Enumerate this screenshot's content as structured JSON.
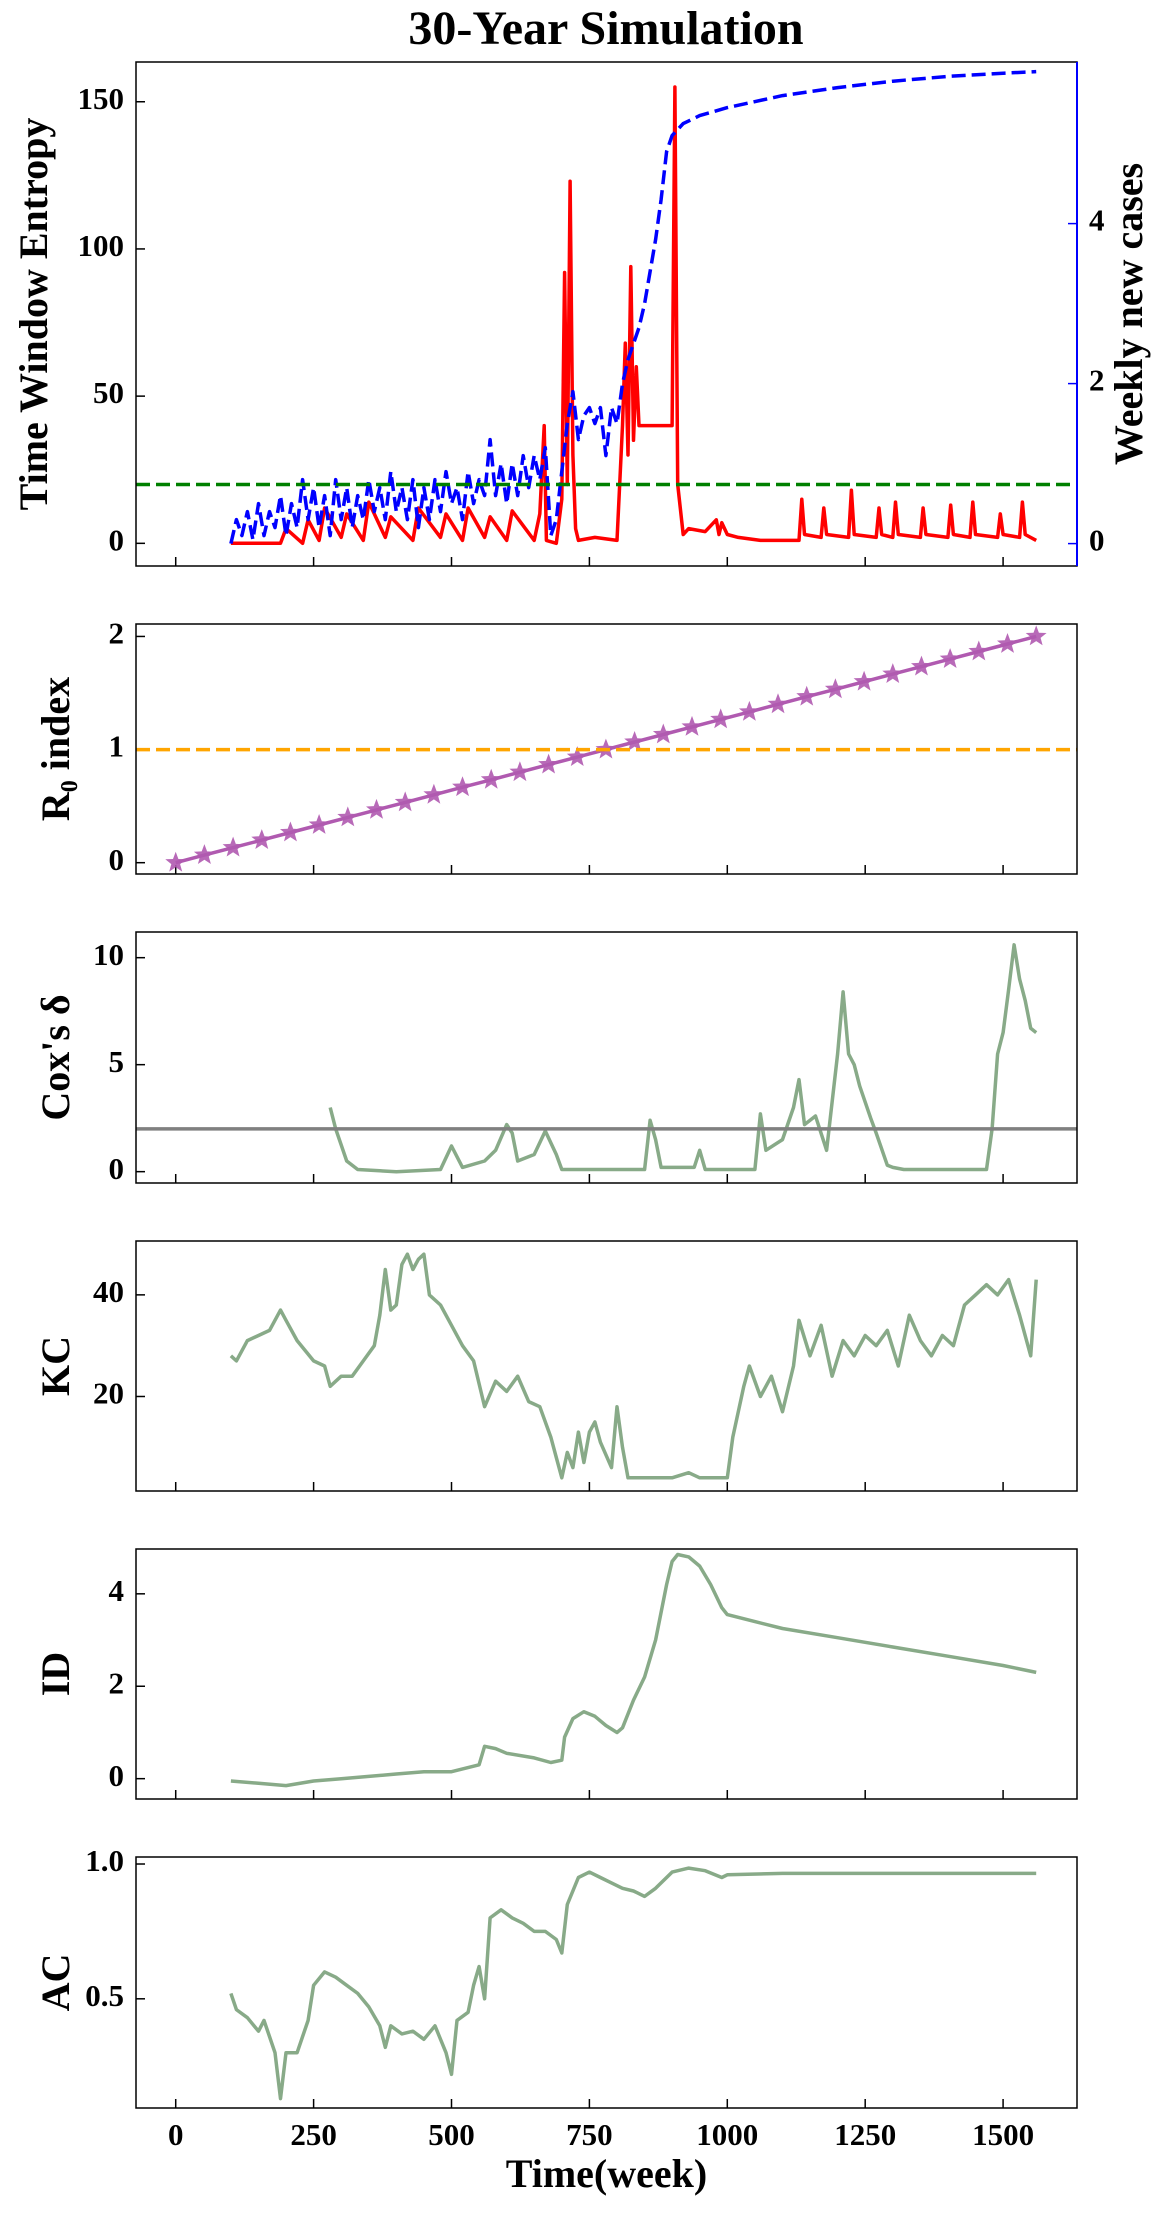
{
  "chart_data": [
    {
      "type": "line",
      "title": "30-Year Simulation",
      "y_label": "Time Window Entropy",
      "y_label_color": "#ff0000",
      "y2_label": "Weekly new cases",
      "y2_label_color": "#0000ff",
      "xlim": [
        -72,
        1634
      ],
      "xticks": [
        0,
        250,
        500,
        750,
        1000,
        1250,
        1500
      ],
      "ylim": [
        -7.7,
        163.5
      ],
      "yticks": [
        0,
        50,
        100,
        150
      ],
      "y2lim": [
        -0.28,
        6.02
      ],
      "y2ticks": [
        0,
        2,
        4
      ],
      "threshold": {
        "value": 20,
        "color": "#008000",
        "style": "dashed"
      },
      "series": [
        {
          "color": "#ff0000",
          "style": "solid",
          "x": [
            100,
            190,
            200,
            230,
            240,
            260,
            270,
            300,
            310,
            340,
            350,
            380,
            390,
            430,
            440,
            480,
            490,
            520,
            530,
            560,
            570,
            600,
            610,
            650,
            660,
            668,
            672,
            690,
            700,
            705,
            710,
            715,
            720,
            725,
            730,
            760,
            800,
            810,
            815,
            820,
            825,
            830,
            835,
            840,
            845,
            900,
            905,
            910,
            920,
            930,
            960,
            980,
            985,
            990,
            1000,
            1020,
            1060,
            1100,
            1130,
            1135,
            1140,
            1170,
            1175,
            1180,
            1220,
            1225,
            1230,
            1270,
            1275,
            1280,
            1300,
            1305,
            1310,
            1350,
            1355,
            1360,
            1400,
            1405,
            1410,
            1440,
            1445,
            1450,
            1490,
            1495,
            1500,
            1530,
            1535,
            1540,
            1560
          ],
          "values": [
            0,
            0,
            5,
            0,
            8,
            1,
            12,
            2,
            10,
            1,
            14,
            2,
            9,
            1,
            12,
            2,
            10,
            1,
            12,
            2,
            9,
            1,
            11,
            1,
            10,
            40,
            1,
            0,
            15,
            92,
            20,
            123,
            30,
            5,
            1,
            2,
            1,
            40,
            68,
            30,
            94,
            35,
            60,
            40,
            40,
            40,
            155,
            20,
            3,
            5,
            4,
            8,
            3,
            7,
            3,
            2,
            1,
            1,
            1,
            15,
            3,
            2,
            12,
            3,
            2,
            18,
            3,
            2,
            12,
            3,
            2,
            14,
            3,
            2,
            12,
            3,
            2,
            13,
            3,
            2,
            14,
            3,
            2,
            10,
            3,
            2,
            14,
            3,
            1
          ]
        },
        {
          "color": "#0000ff",
          "style": "dashed",
          "axis": "y2",
          "x": [
            100,
            110,
            120,
            130,
            140,
            150,
            160,
            170,
            180,
            190,
            200,
            210,
            220,
            230,
            240,
            250,
            260,
            270,
            280,
            290,
            300,
            310,
            320,
            330,
            340,
            350,
            360,
            370,
            380,
            390,
            400,
            410,
            420,
            430,
            440,
            450,
            460,
            470,
            480,
            490,
            500,
            510,
            520,
            530,
            540,
            550,
            560,
            570,
            580,
            590,
            600,
            610,
            620,
            630,
            640,
            650,
            660,
            670,
            680,
            690,
            700,
            710,
            720,
            730,
            740,
            750,
            760,
            770,
            780,
            790,
            800,
            810,
            820,
            830,
            840,
            850,
            860,
            870,
            880,
            890,
            900,
            920,
            950,
            1000,
            1100,
            1200,
            1300,
            1400,
            1500,
            1560
          ],
          "values": [
            0,
            0.3,
            0.1,
            0.4,
            0.05,
            0.5,
            0.1,
            0.4,
            0.2,
            0.6,
            0.1,
            0.5,
            0.2,
            0.8,
            0.3,
            0.7,
            0.2,
            0.6,
            0.1,
            0.8,
            0.3,
            0.7,
            0.2,
            0.6,
            0.3,
            0.8,
            0.4,
            0.7,
            0.3,
            0.9,
            0.4,
            0.7,
            0.3,
            0.8,
            0.2,
            0.7,
            0.3,
            0.8,
            0.4,
            0.9,
            0.5,
            0.7,
            0.3,
            0.9,
            0.5,
            0.8,
            0.6,
            1.3,
            0.6,
            1.0,
            0.5,
            1.0,
            0.6,
            1.1,
            0.7,
            1.1,
            0.8,
            1.2,
            0.1,
            0.3,
            0.9,
            1.5,
            1.9,
            1.3,
            1.6,
            1.7,
            1.5,
            1.7,
            1.1,
            1.7,
            1.5,
            2.0,
            2.3,
            2.5,
            2.7,
            3.0,
            3.4,
            3.8,
            4.3,
            4.9,
            5.1,
            5.25,
            5.35,
            5.45,
            5.6,
            5.7,
            5.78,
            5.84,
            5.88,
            5.9
          ]
        }
      ]
    },
    {
      "type": "line",
      "y_label": "R₀ index",
      "y_label_color": "#000000",
      "xlim": [
        -72,
        1634
      ],
      "xticks": [
        0,
        250,
        500,
        750,
        1000,
        1250,
        1500
      ],
      "ylim": [
        -0.1,
        2.11
      ],
      "yticks": [
        0,
        1,
        2
      ],
      "threshold": {
        "value": 1,
        "color": "#ffa500",
        "style": "dashed"
      },
      "series": [
        {
          "color": "#b05ab0",
          "style": "solid",
          "marker": "star",
          "x": [
            0,
            52,
            104,
            156,
            208,
            260,
            312,
            364,
            416,
            468,
            520,
            572,
            624,
            676,
            728,
            780,
            832,
            884,
            936,
            988,
            1040,
            1092,
            1144,
            1196,
            1248,
            1300,
            1352,
            1404,
            1456,
            1508,
            1560
          ],
          "values": [
            0,
            0.067,
            0.133,
            0.2,
            0.267,
            0.333,
            0.4,
            0.467,
            0.533,
            0.6,
            0.667,
            0.733,
            0.8,
            0.867,
            0.933,
            1,
            1.067,
            1.133,
            1.2,
            1.267,
            1.333,
            1.4,
            1.467,
            1.533,
            1.6,
            1.667,
            1.733,
            1.8,
            1.867,
            1.933,
            2
          ]
        }
      ]
    },
    {
      "type": "line",
      "y_label": "Cox's δ",
      "y_label_color": "#000000",
      "xlim": [
        -72,
        1634
      ],
      "xticks": [
        0,
        250,
        500,
        750,
        1000,
        1250,
        1500
      ],
      "ylim": [
        -0.53,
        11.2
      ],
      "yticks": [
        0,
        5,
        10
      ],
      "threshold": {
        "value": 2,
        "color": "#808080",
        "style": "solid"
      },
      "series": [
        {
          "color": "#88aa88",
          "style": "solid",
          "x": [
            280,
            290,
            310,
            330,
            400,
            480,
            500,
            520,
            560,
            580,
            600,
            610,
            620,
            650,
            670,
            690,
            700,
            850,
            860,
            870,
            880,
            940,
            950,
            960,
            1050,
            1060,
            1070,
            1100,
            1120,
            1130,
            1140,
            1160,
            1180,
            1200,
            1210,
            1220,
            1230,
            1240,
            1260,
            1270,
            1290,
            1300,
            1320,
            1470,
            1480,
            1490,
            1500,
            1510,
            1520,
            1530,
            1540,
            1550,
            1560
          ],
          "values": [
            3,
            2,
            0.5,
            0.1,
            0,
            0.1,
            1.2,
            0.2,
            0.5,
            1.0,
            2.2,
            1.8,
            0.5,
            0.8,
            1.9,
            0.8,
            0.1,
            0.1,
            2.4,
            1.5,
            0.2,
            0.2,
            1.0,
            0.1,
            0.1,
            2.7,
            1.0,
            1.5,
            3.0,
            4.3,
            2.2,
            2.6,
            1.0,
            5.5,
            8.4,
            5.5,
            5.0,
            4.0,
            2.5,
            1.8,
            0.3,
            0.2,
            0.1,
            0.1,
            2.0,
            5.5,
            6.5,
            8.5,
            10.6,
            9.0,
            8.0,
            6.7,
            6.5
          ]
        }
      ]
    },
    {
      "type": "line",
      "y_label": "KC",
      "y_label_color": "#000000",
      "xlim": [
        -72,
        1634
      ],
      "xticks": [
        0,
        250,
        500,
        750,
        1000,
        1250,
        1500
      ],
      "ylim": [
        1.4,
        50.6
      ],
      "yticks": [
        20,
        40
      ],
      "series": [
        {
          "color": "#88aa88",
          "style": "solid",
          "x": [
            100,
            110,
            130,
            150,
            170,
            190,
            200,
            220,
            250,
            270,
            280,
            300,
            320,
            340,
            360,
            370,
            380,
            390,
            400,
            410,
            420,
            430,
            440,
            450,
            460,
            480,
            500,
            520,
            540,
            560,
            580,
            600,
            620,
            640,
            660,
            680,
            690,
            700,
            710,
            720,
            730,
            740,
            750,
            760,
            770,
            790,
            800,
            810,
            820,
            860,
            900,
            930,
            950,
            1000,
            1010,
            1030,
            1040,
            1060,
            1080,
            1100,
            1120,
            1130,
            1150,
            1170,
            1190,
            1210,
            1230,
            1250,
            1270,
            1290,
            1310,
            1330,
            1350,
            1370,
            1390,
            1410,
            1430,
            1450,
            1470,
            1490,
            1510,
            1530,
            1550,
            1560
          ],
          "values": [
            28,
            27,
            31,
            32,
            33,
            37,
            35,
            31,
            27,
            26,
            22,
            24,
            24,
            27,
            30,
            36,
            45,
            37,
            38,
            46,
            48,
            45,
            47,
            48,
            40,
            38,
            34,
            30,
            27,
            18,
            23,
            21,
            24,
            19,
            18,
            12,
            8,
            4,
            9,
            6,
            13,
            7,
            13,
            15,
            11,
            6,
            18,
            10,
            4,
            4,
            4,
            5,
            4,
            4,
            12,
            22,
            26,
            20,
            24,
            17,
            26,
            35,
            28,
            34,
            24,
            31,
            28,
            32,
            30,
            33,
            26,
            36,
            31,
            28,
            32,
            30,
            38,
            40,
            42,
            40,
            43,
            36,
            28,
            43
          ]
        }
      ]
    },
    {
      "type": "line",
      "y_label": "ID",
      "y_label_color": "#000000",
      "xlim": [
        -72,
        1634
      ],
      "xticks": [
        0,
        250,
        500,
        750,
        1000,
        1250,
        1500
      ],
      "ylim": [
        -0.44,
        4.97
      ],
      "yticks": [
        0,
        2,
        4
      ],
      "series": [
        {
          "color": "#88aa88",
          "style": "solid",
          "x": [
            100,
            150,
            200,
            250,
            300,
            350,
            400,
            450,
            500,
            550,
            560,
            580,
            600,
            650,
            680,
            700,
            705,
            720,
            740,
            760,
            780,
            800,
            810,
            830,
            850,
            870,
            890,
            900,
            910,
            930,
            950,
            970,
            990,
            1000,
            1050,
            1100,
            1200,
            1300,
            1400,
            1500,
            1560
          ],
          "values": [
            -0.05,
            -0.1,
            -0.15,
            -0.05,
            0,
            0.05,
            0.1,
            0.15,
            0.15,
            0.3,
            0.7,
            0.65,
            0.55,
            0.45,
            0.35,
            0.4,
            0.9,
            1.3,
            1.45,
            1.35,
            1.15,
            1.0,
            1.1,
            1.7,
            2.2,
            3.0,
            4.2,
            4.7,
            4.85,
            4.8,
            4.6,
            4.2,
            3.7,
            3.55,
            3.4,
            3.25,
            3.05,
            2.85,
            2.65,
            2.45,
            2.3
          ]
        }
      ]
    },
    {
      "type": "line",
      "y_label": "AC",
      "y_label_color": "#000000",
      "x_label": "Time(week)",
      "xlim": [
        -72,
        1634
      ],
      "xticks": [
        0,
        250,
        500,
        750,
        1000,
        1250,
        1500
      ],
      "ylim": [
        0.095,
        1.026
      ],
      "yticks": [
        0.5,
        {
          "value": 1,
          "label": "1.0"
        }
      ],
      "series": [
        {
          "color": "#88aa88",
          "style": "solid",
          "x": [
            100,
            110,
            130,
            150,
            160,
            180,
            190,
            200,
            220,
            240,
            250,
            270,
            290,
            310,
            330,
            350,
            370,
            380,
            390,
            410,
            430,
            450,
            470,
            490,
            500,
            510,
            530,
            540,
            550,
            560,
            570,
            590,
            610,
            630,
            650,
            670,
            690,
            700,
            710,
            730,
            750,
            770,
            790,
            810,
            830,
            850,
            870,
            900,
            930,
            960,
            990,
            1000,
            1100,
            1200,
            1300,
            1400,
            1500,
            1560
          ],
          "values": [
            0.52,
            0.46,
            0.43,
            0.38,
            0.42,
            0.3,
            0.13,
            0.3,
            0.3,
            0.42,
            0.55,
            0.6,
            0.58,
            0.55,
            0.52,
            0.47,
            0.4,
            0.32,
            0.4,
            0.37,
            0.38,
            0.35,
            0.4,
            0.3,
            0.22,
            0.42,
            0.45,
            0.55,
            0.62,
            0.5,
            0.8,
            0.83,
            0.8,
            0.78,
            0.75,
            0.75,
            0.72,
            0.67,
            0.85,
            0.95,
            0.97,
            0.95,
            0.93,
            0.91,
            0.9,
            0.88,
            0.91,
            0.97,
            0.985,
            0.975,
            0.95,
            0.96,
            0.965,
            0.965,
            0.965,
            0.965,
            0.965,
            0.965
          ]
        }
      ]
    }
  ]
}
